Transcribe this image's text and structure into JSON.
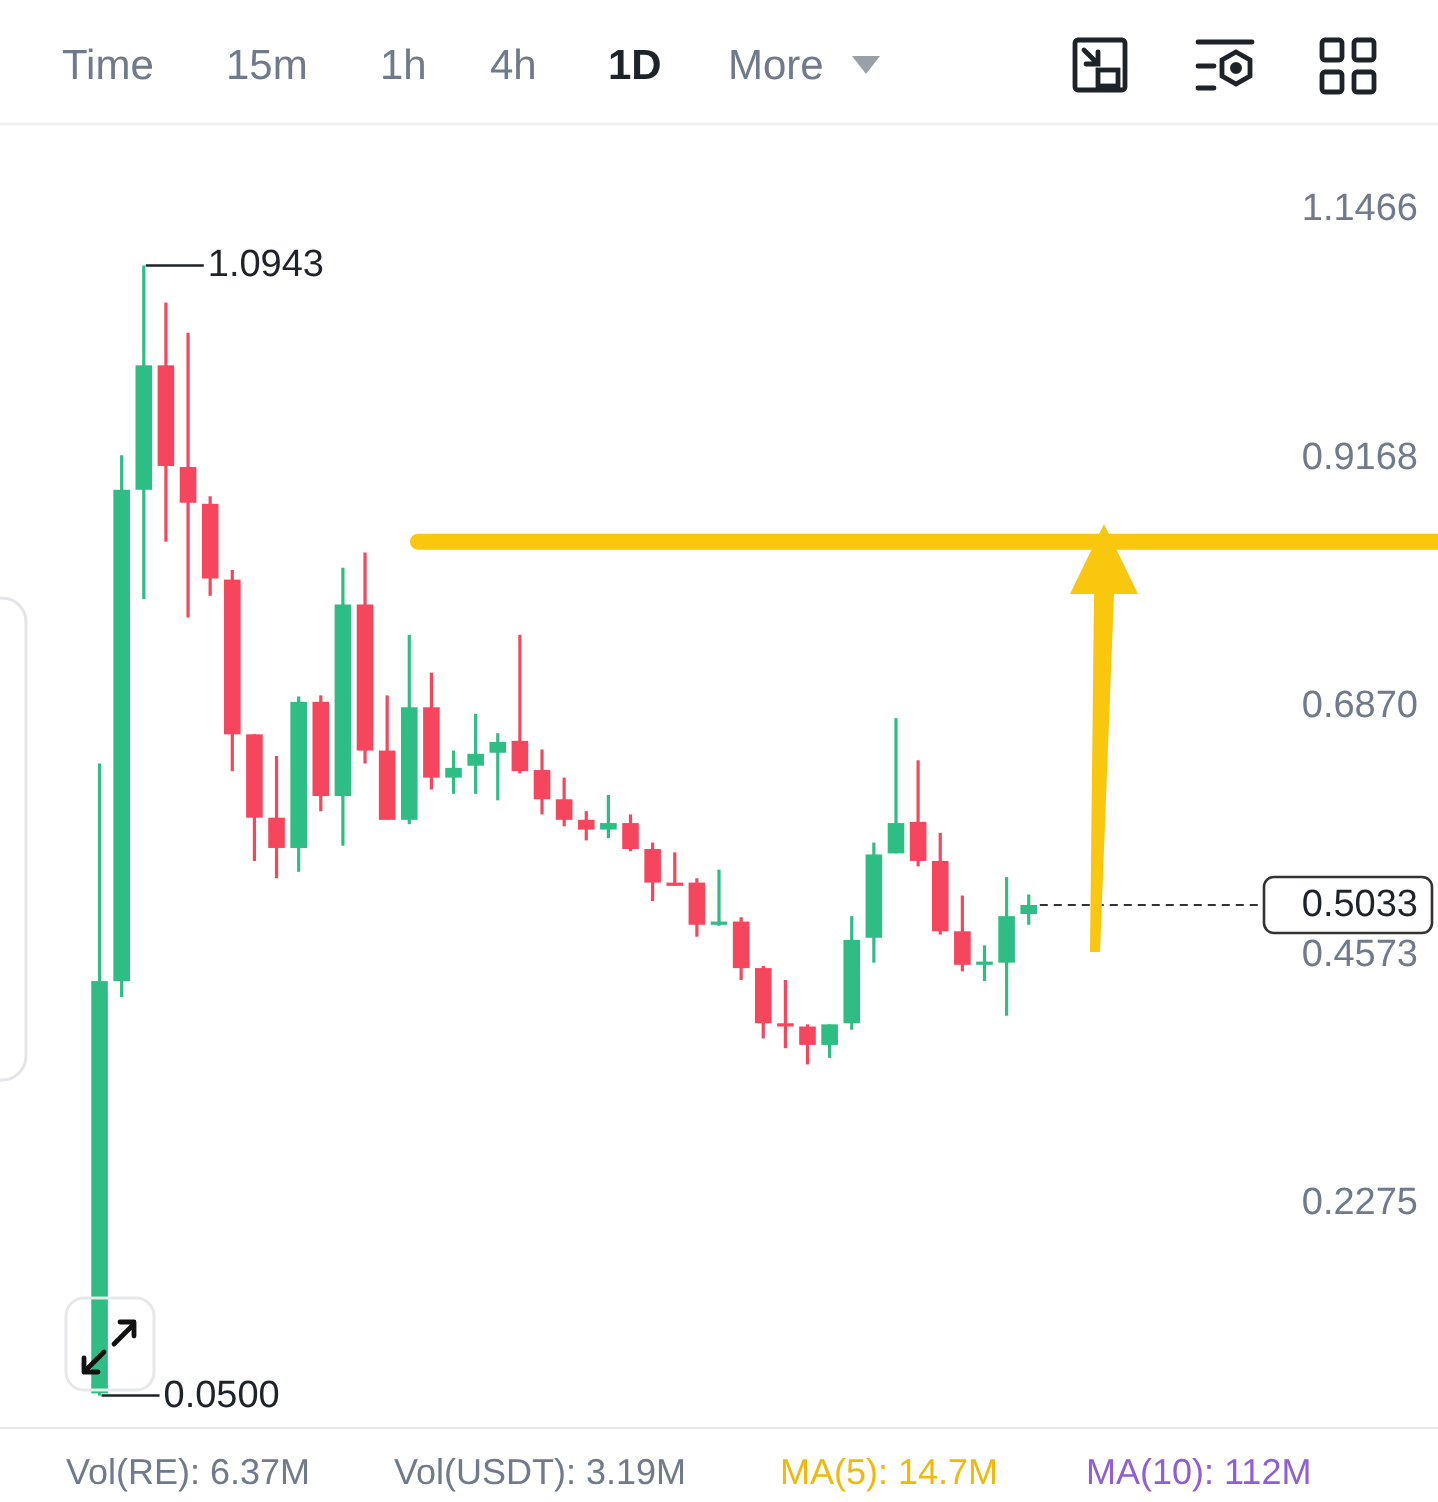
{
  "chart_data": {
    "type": "candlestick",
    "categories": [
      null,
      null,
      null,
      null,
      null,
      null,
      null,
      null,
      null,
      null,
      null,
      null,
      null,
      null,
      null,
      null,
      null,
      null,
      null,
      null,
      null,
      null,
      null,
      null,
      null,
      null,
      null,
      null,
      null,
      null,
      null,
      null,
      null,
      null,
      null,
      null,
      null,
      null,
      null,
      null,
      null,
      null,
      null,
      null,
      null,
      null,
      null,
      null,
      null,
      null,
      null,
      null,
      null,
      null,
      null,
      null,
      null,
      null,
      null,
      null,
      null,
      null,
      null,
      null,
      null
    ],
    "ohlc": [
      null,
      null,
      null,
      null,
      [
        0.052,
        0.634,
        0.05,
        0.433
      ],
      [
        0.433,
        0.919,
        0.418,
        0.887
      ],
      [
        0.887,
        1.0943,
        0.786,
        1.002
      ],
      [
        1.002,
        1.06,
        0.839,
        0.909
      ],
      [
        0.908,
        1.032,
        0.769,
        0.875
      ],
      [
        0.874,
        0.881,
        0.789,
        0.805
      ],
      [
        0.804,
        0.813,
        0.627,
        0.661
      ],
      [
        0.661,
        0.661,
        0.544,
        0.584
      ],
      [
        0.584,
        0.641,
        0.528,
        0.556
      ],
      [
        0.556,
        0.696,
        0.534,
        0.691
      ],
      [
        0.691,
        0.697,
        0.59,
        0.604
      ],
      [
        0.604,
        0.815,
        0.558,
        0.781
      ],
      [
        0.781,
        0.829,
        0.634,
        0.646
      ],
      [
        0.646,
        0.697,
        0.582,
        0.582
      ],
      [
        0.582,
        0.753,
        0.578,
        0.686
      ],
      [
        0.686,
        0.718,
        0.61,
        0.621
      ],
      [
        0.621,
        0.646,
        0.606,
        0.63
      ],
      [
        0.632,
        0.68,
        0.606,
        0.643
      ],
      [
        0.644,
        0.662,
        0.6,
        0.654
      ],
      [
        0.655,
        0.753,
        0.625,
        0.627
      ],
      [
        0.628,
        0.647,
        0.587,
        0.601
      ],
      [
        0.601,
        0.621,
        0.576,
        0.582
      ],
      [
        0.582,
        0.59,
        0.563,
        0.573
      ],
      [
        0.573,
        0.605,
        0.565,
        0.579
      ],
      [
        0.579,
        0.587,
        0.553,
        0.555
      ],
      [
        0.555,
        0.561,
        0.507,
        0.524
      ],
      [
        0.524,
        0.552,
        0.521,
        0.521
      ],
      [
        0.524,
        0.528,
        0.474,
        0.485
      ],
      [
        0.485,
        0.536,
        0.484,
        0.488
      ],
      [
        0.488,
        0.492,
        0.434,
        0.445
      ],
      [
        0.445,
        0.447,
        0.38,
        0.394
      ],
      [
        0.394,
        0.434,
        0.371,
        0.391
      ],
      [
        0.391,
        0.393,
        0.356,
        0.374
      ],
      [
        0.374,
        0.393,
        0.362,
        0.393
      ],
      [
        0.394,
        0.493,
        0.388,
        0.471
      ],
      [
        0.473,
        0.561,
        0.45,
        0.55
      ],
      [
        0.551,
        0.676,
        0.551,
        0.579
      ],
      [
        0.58,
        0.637,
        0.539,
        0.544
      ],
      [
        0.544,
        0.57,
        0.476,
        0.479
      ],
      [
        0.479,
        0.512,
        0.442,
        0.448
      ],
      [
        0.448,
        0.466,
        0.433,
        0.451
      ],
      [
        0.45,
        0.529,
        0.401,
        0.493
      ],
      [
        0.495,
        0.513,
        0.485,
        0.5033
      ],
      null,
      null,
      null,
      null,
      null,
      null,
      null,
      null,
      null,
      null,
      null,
      null,
      null,
      null,
      null,
      null,
      null,
      null
    ],
    "colors": [
      null,
      null,
      null,
      null,
      "#2ebd85",
      "#2ebd85",
      "#2ebd85",
      "#f6465d",
      "#f6465d",
      "#f6465d",
      "#f6465d",
      "#f6465d",
      "#f6465d",
      "#2ebd85",
      "#f6465d",
      "#2ebd85",
      "#f6465d",
      "#f6465d",
      "#2ebd85",
      "#f6465d",
      "#2ebd85",
      "#2ebd85",
      "#2ebd85",
      "#f6465d",
      "#f6465d",
      "#f6465d",
      "#f6465d",
      "#2ebd85",
      "#f6465d",
      "#f6465d",
      "#f6465d",
      "#f6465d",
      "#2ebd85",
      "#f6465d",
      "#f6465d",
      "#f6465d",
      "#f6465d",
      "#2ebd85",
      "#2ebd85",
      "#2ebd85",
      "#2ebd85",
      "#f6465d",
      "#f6465d",
      "#f6465d",
      "#2ebd85",
      "#2ebd85",
      "#2ebd85",
      null,
      null,
      null,
      null,
      null,
      null,
      null,
      null,
      null,
      null,
      null,
      null,
      null,
      null,
      null,
      null,
      null,
      null
    ],
    "ylim": [
      0.02,
      1.225
    ],
    "yticks": [
      1.1466,
      0.9168,
      {
        "value": 0.687,
        "label": "0.6870"
      },
      0.4573,
      0.2275
    ],
    "tick_labels": "y",
    "ref_lines": [
      {
        "axis": "y",
        "value": 0.839,
        "color": "#f8c70e",
        "line_style": "solid"
      },
      {
        "axis": "y",
        "value": 0.5033,
        "label": "0.5033",
        "color": "#333333",
        "line_style": "dashed"
      }
    ],
    "annotations": [
      "Time",
      "15m",
      "1h",
      "4h",
      "1D",
      "More",
      "Vol(RE): 6.37M",
      "Vol(USDT): 3.19M",
      "MA(5): 14.7M",
      "MA(10): 112M",
      "1.0943",
      "0.0500"
    ]
  }
}
